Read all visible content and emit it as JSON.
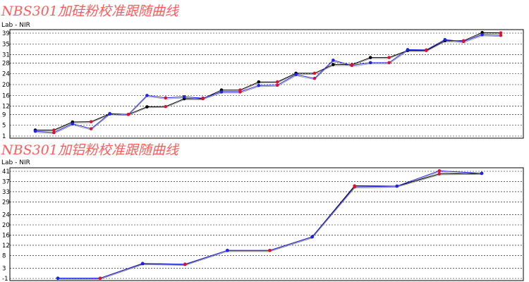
{
  "colors": {
    "title": "#ff5a5a",
    "black_series": "#000000",
    "blue_series": "#2222ee",
    "gray_series": "#8a8a8a",
    "red_marker": "#dd1133"
  },
  "chart_data": [
    {
      "type": "line",
      "title": "NBS301加硅粉校准跟随曲线",
      "subtitle": "Lab - NIR",
      "ylim": [
        1,
        39
      ],
      "yticks": [
        1,
        5,
        9,
        12,
        16,
        20,
        24,
        28,
        31,
        35,
        39
      ],
      "grid": true,
      "x": [
        1,
        2,
        3,
        4,
        5,
        6,
        7,
        8,
        9,
        10,
        11,
        12,
        13,
        14,
        15,
        16,
        17,
        18,
        19,
        20,
        21,
        22,
        23,
        24,
        25,
        26
      ],
      "series": [
        {
          "values": [
            3.2,
            3.2,
            6.2,
            6.3,
            9.2,
            9.0,
            11.8,
            11.9,
            14.8,
            14.8,
            18.0,
            18.0,
            21.0,
            21.0,
            24.2,
            24.2,
            27.4,
            27.4,
            30.0,
            30.0,
            32.6,
            32.6,
            36.2,
            36.2,
            39.2,
            39.1
          ]
        },
        {
          "values": [
            2.8,
            2.3,
            5.5,
            3.7,
            9.3,
            9.0,
            16.0,
            15.1,
            15.5,
            15.0,
            17.3,
            17.3,
            19.7,
            19.8,
            23.7,
            22.3,
            29.0,
            27.1,
            28.1,
            28.1,
            32.9,
            32.8,
            36.6,
            35.9,
            38.4,
            38.2
          ]
        }
      ],
      "red_markers": [
        false,
        true,
        false,
        true,
        false,
        true,
        false,
        true,
        false,
        true,
        false,
        true,
        false,
        true,
        false,
        true,
        false,
        true,
        false,
        true,
        false,
        true,
        false,
        true,
        false,
        true
      ]
    },
    {
      "type": "line",
      "title": "NBS301加铝粉校准跟随曲线",
      "subtitle": "Lab - NIR",
      "ylim": [
        -1,
        41
      ],
      "yticks": [
        -1,
        3,
        8,
        12,
        16,
        20,
        24,
        29,
        33,
        37,
        41
      ],
      "grid": true,
      "x": [
        1,
        2,
        3,
        4,
        5,
        6,
        7,
        8,
        9,
        10,
        11
      ],
      "series": [
        {
          "values": [
            -0.9,
            -0.9,
            4.8,
            4.5,
            10.0,
            10.0,
            15.3,
            35.3,
            35.2,
            40.0,
            40.2
          ]
        },
        {
          "values": [
            -0.9,
            -0.9,
            4.9,
            4.6,
            10.0,
            10.0,
            15.3,
            34.9,
            35.2,
            41.2,
            40.2
          ]
        }
      ],
      "red_markers": [
        false,
        true,
        false,
        true,
        false,
        true,
        false,
        true,
        false,
        true,
        false
      ]
    }
  ]
}
